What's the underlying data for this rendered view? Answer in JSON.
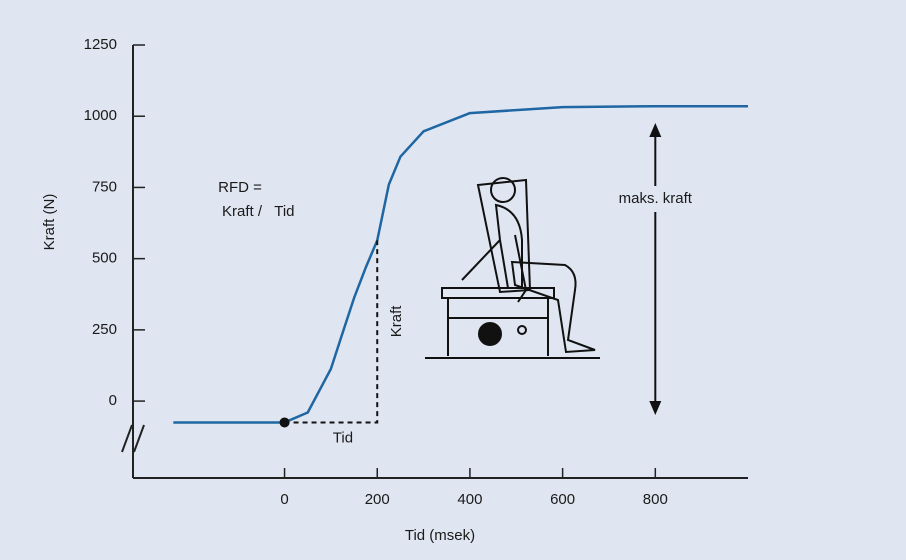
{
  "chart_data": {
    "type": "line",
    "x_label": "Tid (msek)",
    "y_label": "Kraft (N)",
    "x": [
      -240,
      0,
      50,
      100,
      125,
      150,
      175,
      200,
      225,
      250,
      300,
      400,
      600,
      800,
      1000
    ],
    "series": [
      {
        "color": "#1f66a3",
        "values": [
          -75,
          -75,
          -40,
          113,
          238,
          362,
          468,
          564,
          760,
          858,
          947,
          1011,
          1032,
          1035,
          1035
        ]
      }
    ],
    "xlim": [
      -327,
      1000
    ],
    "ylim": [
      -270,
      1250
    ],
    "xticks": [
      0,
      200,
      400,
      600,
      800
    ],
    "yticks": [
      0,
      250,
      500,
      750,
      1000,
      1250
    ],
    "annotations": {
      "rfd": "RFD =",
      "formula": "Kraft /   Tid",
      "kraft": "Kraft",
      "tid": "Tid",
      "max": "maks. kraft"
    }
  }
}
